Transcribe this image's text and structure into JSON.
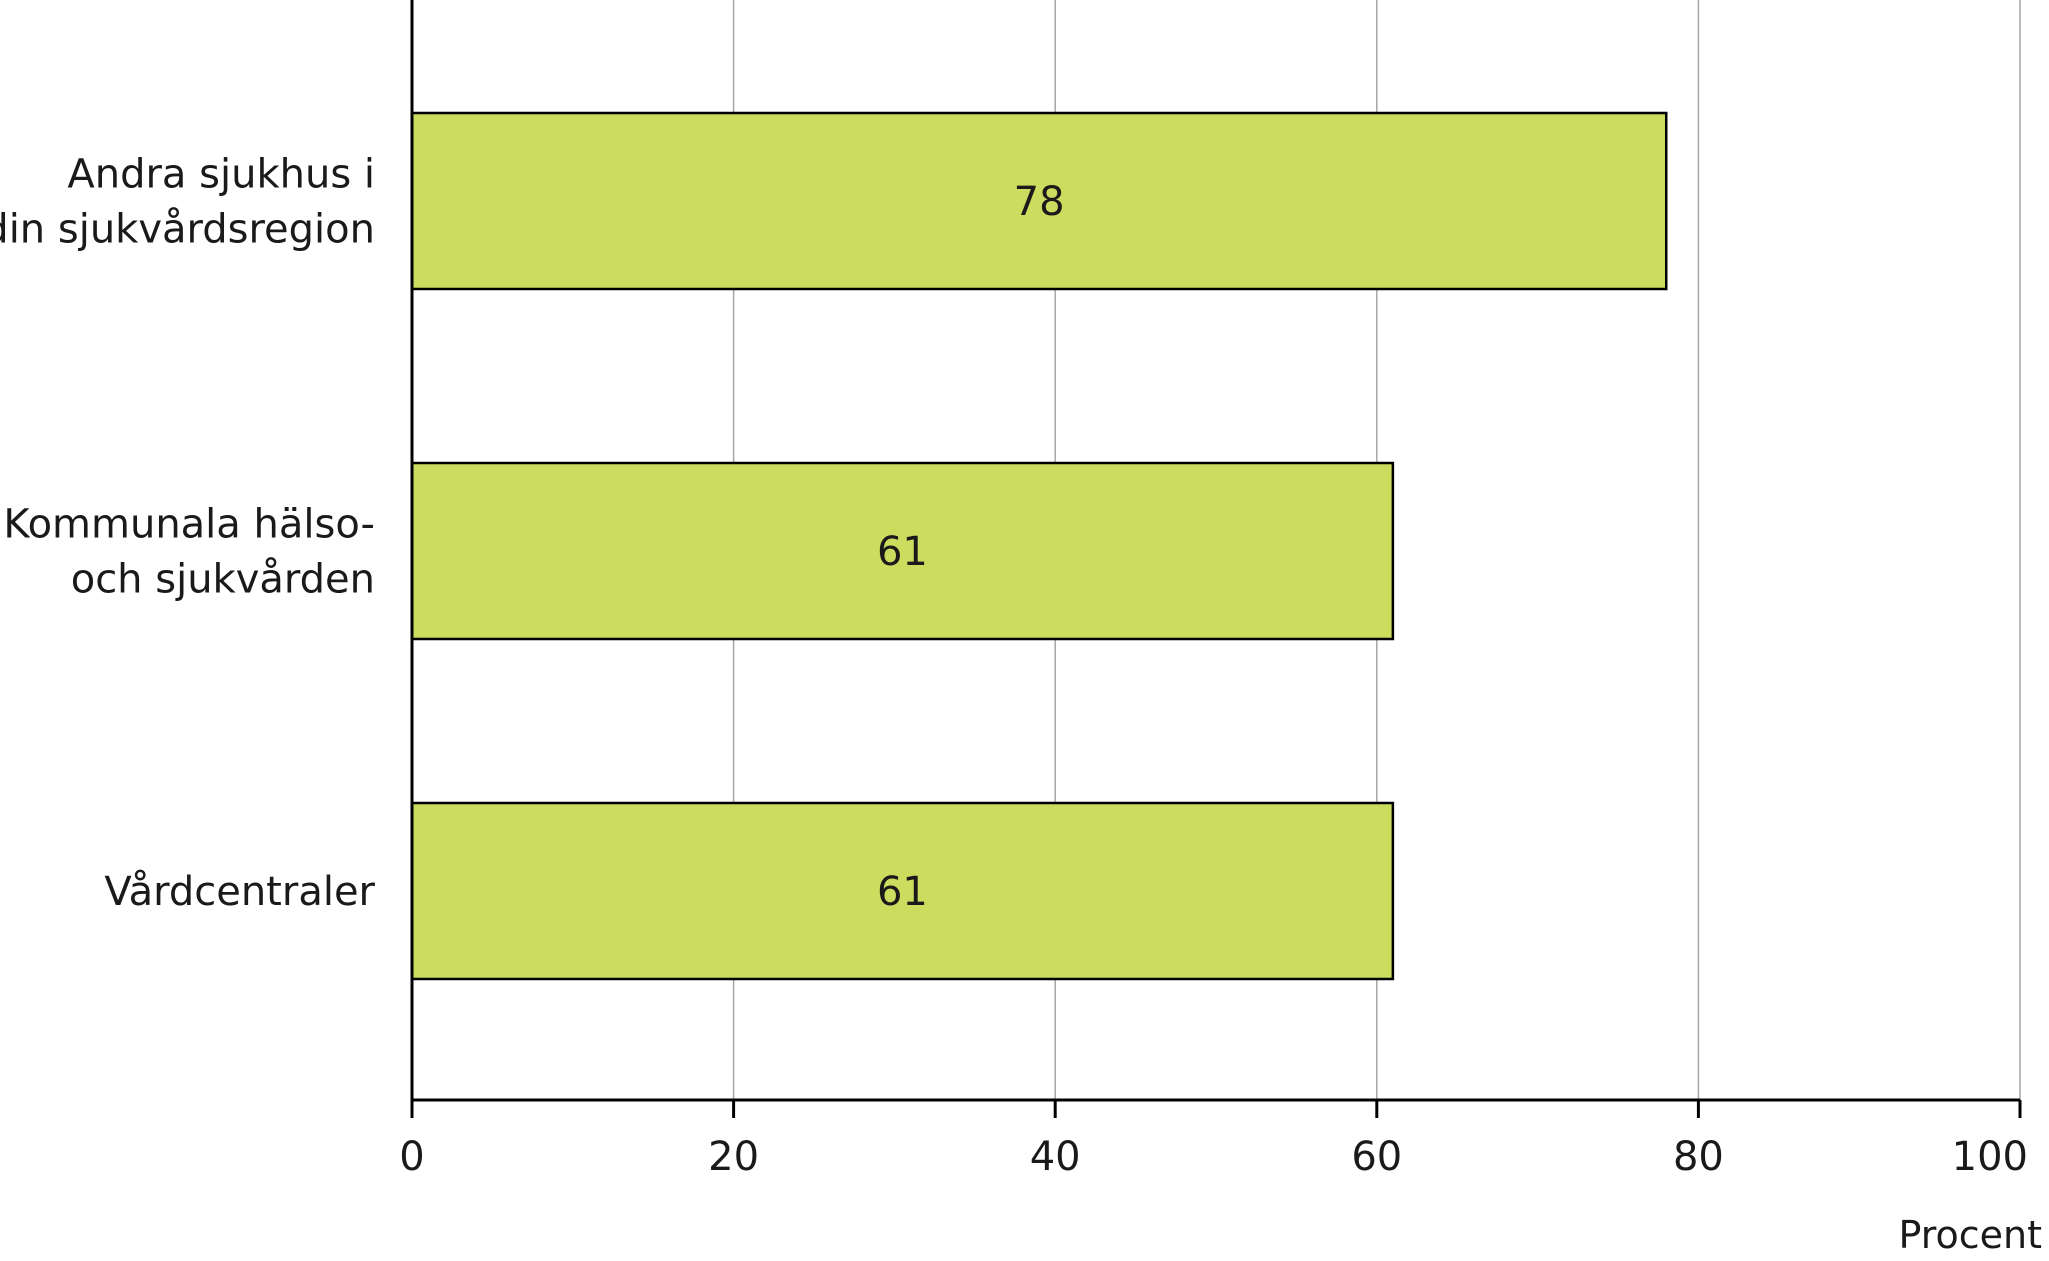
{
  "chart_data": {
    "type": "bar",
    "orientation": "horizontal",
    "categories": [
      [
        "Andra sjukhus i",
        "din sjukvårdsregion"
      ],
      [
        "Kommunala hälso-",
        "och sjukvården"
      ],
      [
        "Vårdcentraler"
      ]
    ],
    "values": [
      78,
      61,
      61
    ],
    "value_labels": [
      "78",
      "61",
      "61"
    ],
    "xlim": [
      0,
      100
    ],
    "xticks": [
      0,
      20,
      40,
      60,
      80,
      100
    ],
    "xtick_labels": [
      "0",
      "20",
      "40",
      "60",
      "80",
      "100"
    ],
    "xlabel": "Procent",
    "grid": "vertical",
    "legend": "none",
    "colors": {
      "bar_fill": "#cbdc5f",
      "bar_stroke": "#000000",
      "grid": "#a6a6a6",
      "axis": "#000000"
    }
  }
}
